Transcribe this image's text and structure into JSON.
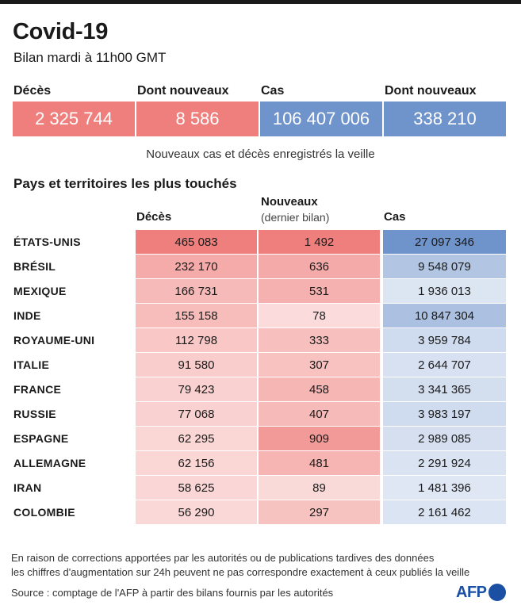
{
  "title": "Covid-19",
  "subtitle": "Bilan mardi à 11h00 GMT",
  "kpis": [
    {
      "label": "Décès",
      "value": "2 325 744",
      "color": "#ef7f7c"
    },
    {
      "label": "Dont nouveaux",
      "value": "8 586",
      "color": "#ef7f7c"
    },
    {
      "label": "Cas",
      "value": "106 407 006",
      "color": "#6f93cb"
    },
    {
      "label": "Dont nouveaux",
      "value": "338 210",
      "color": "#6f93cb"
    }
  ],
  "kpi_note": "Nouveaux cas et décès enregistrés la veille",
  "section_title": "Pays et territoires les plus touchés",
  "columns": {
    "deaths": "Décès",
    "new": "Nouveaux",
    "new_sub": "(dernier bilan)",
    "cases": "Cas"
  },
  "chart_data": {
    "type": "table",
    "columns": [
      "Décès",
      "Nouveaux (dernier bilan)",
      "Cas"
    ],
    "rows": [
      {
        "country": "ÉTATS-UNIS",
        "deaths": 465083,
        "deaths_label": "465 083",
        "new": 1492,
        "new_label": "1 492",
        "cases": 27097346,
        "cases_label": "27 097 346"
      },
      {
        "country": "BRÉSIL",
        "deaths": 232170,
        "deaths_label": "232 170",
        "new": 636,
        "new_label": "636",
        "cases": 9548079,
        "cases_label": "9 548 079"
      },
      {
        "country": "MEXIQUE",
        "deaths": 166731,
        "deaths_label": "166 731",
        "new": 531,
        "new_label": "531",
        "cases": 1936013,
        "cases_label": "1 936 013"
      },
      {
        "country": "INDE",
        "deaths": 155158,
        "deaths_label": "155 158",
        "new": 78,
        "new_label": "78",
        "cases": 10847304,
        "cases_label": "10 847 304"
      },
      {
        "country": "ROYAUME-UNI",
        "deaths": 112798,
        "deaths_label": "112 798",
        "new": 333,
        "new_label": "333",
        "cases": 3959784,
        "cases_label": "3 959 784"
      },
      {
        "country": "ITALIE",
        "deaths": 91580,
        "deaths_label": "91 580",
        "new": 307,
        "new_label": "307",
        "cases": 2644707,
        "cases_label": "2 644 707"
      },
      {
        "country": "FRANCE",
        "deaths": 79423,
        "deaths_label": "79 423",
        "new": 458,
        "new_label": "458",
        "cases": 3341365,
        "cases_label": "3 341 365"
      },
      {
        "country": "RUSSIE",
        "deaths": 77068,
        "deaths_label": "77 068",
        "new": 407,
        "new_label": "407",
        "cases": 3983197,
        "cases_label": "3 983 197"
      },
      {
        "country": "ESPAGNE",
        "deaths": 62295,
        "deaths_label": "62 295",
        "new": 909,
        "new_label": "909",
        "cases": 2989085,
        "cases_label": "2 989 085"
      },
      {
        "country": "ALLEMAGNE",
        "deaths": 62156,
        "deaths_label": "62 156",
        "new": 481,
        "new_label": "481",
        "cases": 2291924,
        "cases_label": "2 291 924"
      },
      {
        "country": "IRAN",
        "deaths": 58625,
        "deaths_label": "58 625",
        "new": 89,
        "new_label": "89",
        "cases": 1481396,
        "cases_label": "1 481 396"
      },
      {
        "country": "COLOMBIE",
        "deaths": 56290,
        "deaths_label": "56 290",
        "new": 297,
        "new_label": "297",
        "cases": 2161462,
        "cases_label": "2 161 462"
      }
    ],
    "color_scales": {
      "red": "#ef7f7c",
      "blue": "#6f93cb"
    }
  },
  "footnote_1": "En raison de corrections apportées par les autorités ou de publications tardives des données",
  "footnote_2": "les chiffres d'augmentation sur 24h peuvent ne pas correspondre exactement à ceux publiés la veille",
  "source": "Source : comptage de l'AFP à partir des bilans fournis par les autorités",
  "logo_text": "AFP"
}
